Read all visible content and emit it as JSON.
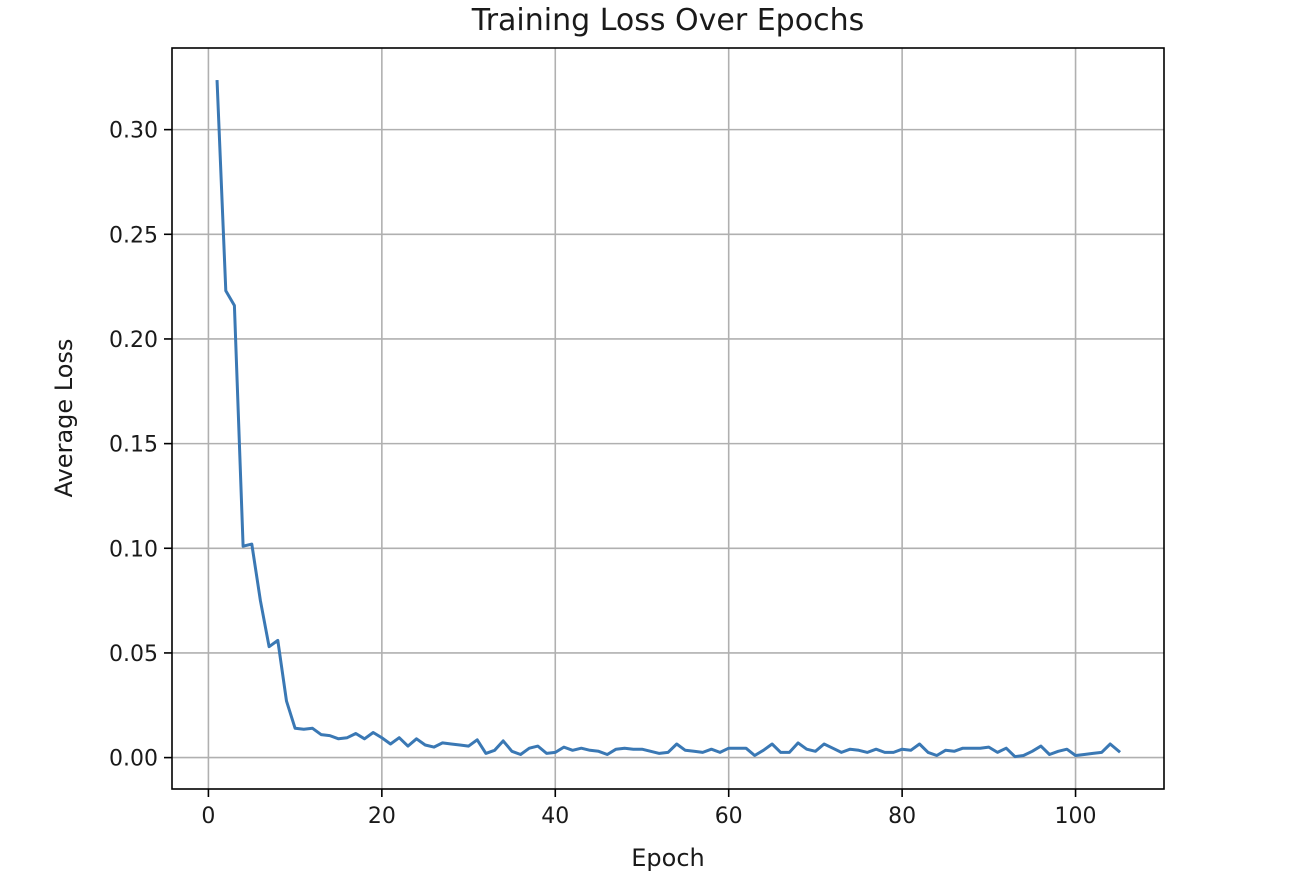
{
  "chart_data": {
    "type": "line",
    "title": "Training Loss Over Epochs",
    "xlabel": "Epoch",
    "ylabel": "Average Loss",
    "xlim": [
      -4.2,
      110.2
    ],
    "ylim": [
      -0.015,
      0.339
    ],
    "xticks": [
      0,
      20,
      40,
      60,
      80,
      100
    ],
    "xtick_labels": [
      "0",
      "20",
      "40",
      "60",
      "80",
      "100"
    ],
    "yticks": [
      0.0,
      0.05,
      0.1,
      0.15,
      0.2,
      0.25,
      0.3
    ],
    "ytick_labels": [
      "0.00",
      "0.05",
      "0.10",
      "0.15",
      "0.20",
      "0.25",
      "0.30"
    ],
    "grid": true,
    "series": [
      {
        "color": "#3a78b4",
        "x": [
          1,
          2,
          3,
          4,
          5,
          6,
          7,
          8,
          9,
          10,
          11,
          12,
          13,
          14,
          15,
          16,
          17,
          18,
          19,
          20,
          21,
          22,
          23,
          24,
          25,
          26,
          27,
          28,
          29,
          30,
          31,
          32,
          33,
          34,
          35,
          36,
          37,
          38,
          39,
          40,
          41,
          42,
          43,
          44,
          45,
          46,
          47,
          48,
          49,
          50,
          51,
          52,
          53,
          54,
          55,
          56,
          57,
          58,
          59,
          60,
          61,
          62,
          63,
          64,
          65,
          66,
          67,
          68,
          69,
          70,
          71,
          72,
          73,
          74,
          75,
          76,
          77,
          78,
          79,
          80,
          81,
          82,
          83,
          84,
          85,
          86,
          87,
          88,
          89,
          90,
          91,
          92,
          93,
          94,
          95,
          96,
          97,
          98,
          99,
          100,
          101,
          102,
          103,
          104,
          105
        ],
        "values": [
          0.323,
          0.223,
          0.216,
          0.101,
          0.102,
          0.075,
          0.053,
          0.056,
          0.027,
          0.014,
          0.0135,
          0.014,
          0.011,
          0.0105,
          0.009,
          0.0095,
          0.0115,
          0.009,
          0.012,
          0.0095,
          0.0065,
          0.0095,
          0.0055,
          0.009,
          0.006,
          0.005,
          0.007,
          0.0065,
          0.006,
          0.0055,
          0.0085,
          0.002,
          0.0035,
          0.008,
          0.003,
          0.0015,
          0.0045,
          0.0055,
          0.002,
          0.0025,
          0.005,
          0.0035,
          0.0045,
          0.0035,
          0.003,
          0.0015,
          0.004,
          0.0045,
          0.004,
          0.004,
          0.003,
          0.002,
          0.0025,
          0.0065,
          0.0035,
          0.003,
          0.0025,
          0.004,
          0.0025,
          0.0045,
          0.0045,
          0.0045,
          0.001,
          0.0035,
          0.0065,
          0.0025,
          0.0025,
          0.007,
          0.004,
          0.003,
          0.0065,
          0.0045,
          0.0025,
          0.004,
          0.0035,
          0.0025,
          0.004,
          0.0025,
          0.0025,
          0.004,
          0.0035,
          0.0065,
          0.0025,
          0.001,
          0.0035,
          0.003,
          0.0045,
          0.0045,
          0.0045,
          0.005,
          0.0025,
          0.0045,
          0.0005,
          0.001,
          0.003,
          0.0055,
          0.0015,
          0.003,
          0.004,
          0.001,
          0.0015,
          0.002,
          0.0025,
          0.0065,
          0.003
        ]
      }
    ]
  }
}
